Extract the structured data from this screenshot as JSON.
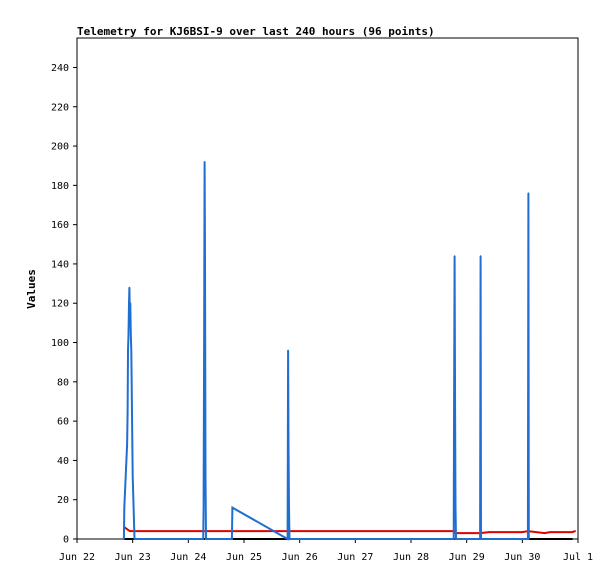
{
  "chart_data": {
    "type": "line",
    "title": "Telemetry for KJ6BSI-9 over last 240 hours (96 points)",
    "xlabel": "",
    "ylabel": "Values",
    "ylim": [
      0,
      255
    ],
    "xlim": [
      "Jun 22 00:00",
      "Jul 01 00:00"
    ],
    "grid": false,
    "y_ticks": [
      0,
      20,
      40,
      60,
      80,
      100,
      120,
      140,
      160,
      180,
      200,
      220,
      240
    ],
    "x_ticks": [
      "Jun 22",
      "Jun 23",
      "Jun 24",
      "Jun 25",
      "Jun 26",
      "Jun 27",
      "Jun 28",
      "Jun 29",
      "Jun 30",
      "Jul 1"
    ],
    "colors": {
      "series_blue": "#1f6fd0",
      "series_red": "#e00000",
      "series_black": "#000000",
      "axis": "#000000"
    },
    "series": [
      {
        "color": "series_blue",
        "x": [
          "Jun 22 20:12",
          "Jun 22 20:24",
          "Jun 22 21:36",
          "Jun 22 21:48",
          "Jun 22 22:00",
          "Jun 22 22:12",
          "Jun 22 22:24",
          "Jun 22 22:36",
          "Jun 22 22:48",
          "Jun 22 23:00",
          "Jun 22 23:12",
          "Jun 22 23:24",
          "Jun 23 00:00",
          "Jun 23 00:48",
          "Jun 23 01:36",
          "Jun 23 01:48",
          "Jun 24 06:24",
          "Jun 24 06:36",
          "Jun 24 06:48",
          "Jun 24 07:00",
          "Jun 24 07:12",
          "Jun 24 07:24",
          "Jun 24 07:36",
          "Jun 24 18:48",
          "Jun 24 19:00",
          "Jun 25 18:48",
          "Jun 25 19:00",
          "Jun 25 19:12",
          "Jun 25 19:24",
          "Jun 25 19:36",
          "Jun 28 18:24",
          "Jun 28 18:36",
          "Jun 28 18:48",
          "Jun 28 19:00",
          "Jun 28 19:12",
          "Jun 28 19:24",
          "Jun 29 05:48",
          "Jun 29 06:00",
          "Jun 29 06:12",
          "Jun 30 02:24",
          "Jun 30 02:36",
          "Jun 30 02:48"
        ],
        "values": [
          0,
          16,
          48,
          64,
          96,
          104,
          120,
          128,
          112,
          120,
          104,
          96,
          32,
          0,
          0,
          0,
          0,
          16,
          96,
          192,
          144,
          32,
          0,
          0,
          16,
          0,
          96,
          48,
          16,
          0,
          0,
          72,
          144,
          64,
          16,
          0,
          0,
          144,
          0,
          0,
          176,
          0
        ]
      },
      {
        "color": "series_red",
        "x": [
          "Jun 22 20:24",
          "Jun 22 21:36",
          "Jun 22 22:48",
          "Jun 23 00:00",
          "Jun 24 00:00",
          "Jun 25 00:00",
          "Jun 26 00:00",
          "Jun 27 00:00",
          "Jun 28 00:00",
          "Jun 28 18:48",
          "Jun 28 19:12",
          "Jun 29 00:00",
          "Jun 29 06:00",
          "Jun 29 09:36",
          "Jun 30 00:00",
          "Jun 30 02:24",
          "Jun 30 09:36",
          "Jun 30 12:00",
          "Jun 30 21:36",
          "Jun 30 22:48"
        ],
        "values": [
          6,
          5,
          4,
          4,
          4,
          4,
          4,
          4,
          4,
          4,
          3,
          3,
          3,
          3.5,
          3.5,
          4,
          3,
          3.5,
          3.5,
          4
        ]
      },
      {
        "color": "series_black",
        "x": [
          "Jun 22 20:12",
          "Jun 30 21:36"
        ],
        "values": [
          0,
          0
        ]
      }
    ]
  }
}
